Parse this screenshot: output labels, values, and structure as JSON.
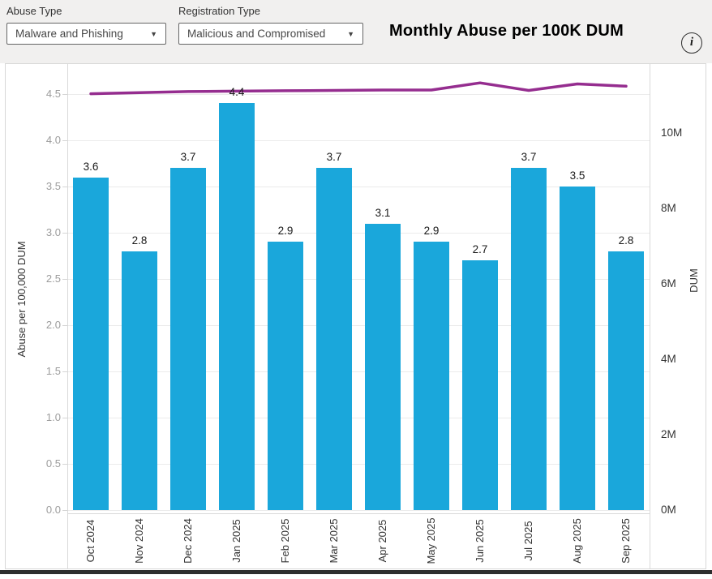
{
  "header": {
    "filters": [
      {
        "label": "Abuse Type",
        "value": "Malware and Phishing"
      },
      {
        "label": "Registration Type",
        "value": "Malicious and Compromised"
      }
    ],
    "title": "Monthly Abuse per 100K DUM",
    "info_glyph": "i"
  },
  "icons": {
    "dropdown_caret": "▼"
  },
  "colors": {
    "bar": "#1aa7db",
    "line": "#952d8f",
    "header_bg": "#f1f0ef",
    "gridline": "#ebebeb",
    "left_tick_text": "#9c9c9c",
    "dark_text": "#333333"
  },
  "chart_data": {
    "type": "bar",
    "categories": [
      "Oct 2024",
      "Nov 2024",
      "Dec 2024",
      "Jan 2025",
      "Feb 2025",
      "Mar 2025",
      "Apr 2025",
      "May 2025",
      "Jun 2025",
      "Jul 2025",
      "Aug 2025",
      "Sep 2025"
    ],
    "series": [
      {
        "name": "Abuse per 100,000 DUM",
        "type": "bar",
        "axis": "left",
        "values": [
          3.6,
          2.8,
          3.7,
          4.4,
          2.9,
          3.7,
          3.1,
          2.9,
          2.7,
          3.7,
          3.5,
          2.8
        ],
        "labels": [
          "3.6",
          "2.8",
          "3.7",
          "4.4",
          "2.9",
          "3.7",
          "3.1",
          "2.9",
          "2.7",
          "3.7",
          "3.5",
          "2.8"
        ]
      },
      {
        "name": "DUM",
        "type": "line",
        "axis": "right",
        "values": [
          11.04,
          11.07,
          11.1,
          11.11,
          11.12,
          11.13,
          11.14,
          11.14,
          11.33,
          11.13,
          11.3,
          11.24
        ]
      }
    ],
    "title": "Monthly Abuse per 100K DUM",
    "xlabel": "",
    "left_axis": {
      "label": "Abuse per 100,000 DUM",
      "ticks": [
        "0.0",
        "0.5",
        "1.0",
        "1.5",
        "2.0",
        "2.5",
        "3.0",
        "3.5",
        "4.0",
        "4.5"
      ],
      "range": [
        0,
        4.5
      ]
    },
    "right_axis": {
      "label": "DUM",
      "ticks": [
        "0M",
        "2M",
        "4M",
        "6M",
        "8M",
        "10M"
      ],
      "range": [
        0,
        12
      ]
    },
    "grid": true,
    "legend": "none"
  }
}
